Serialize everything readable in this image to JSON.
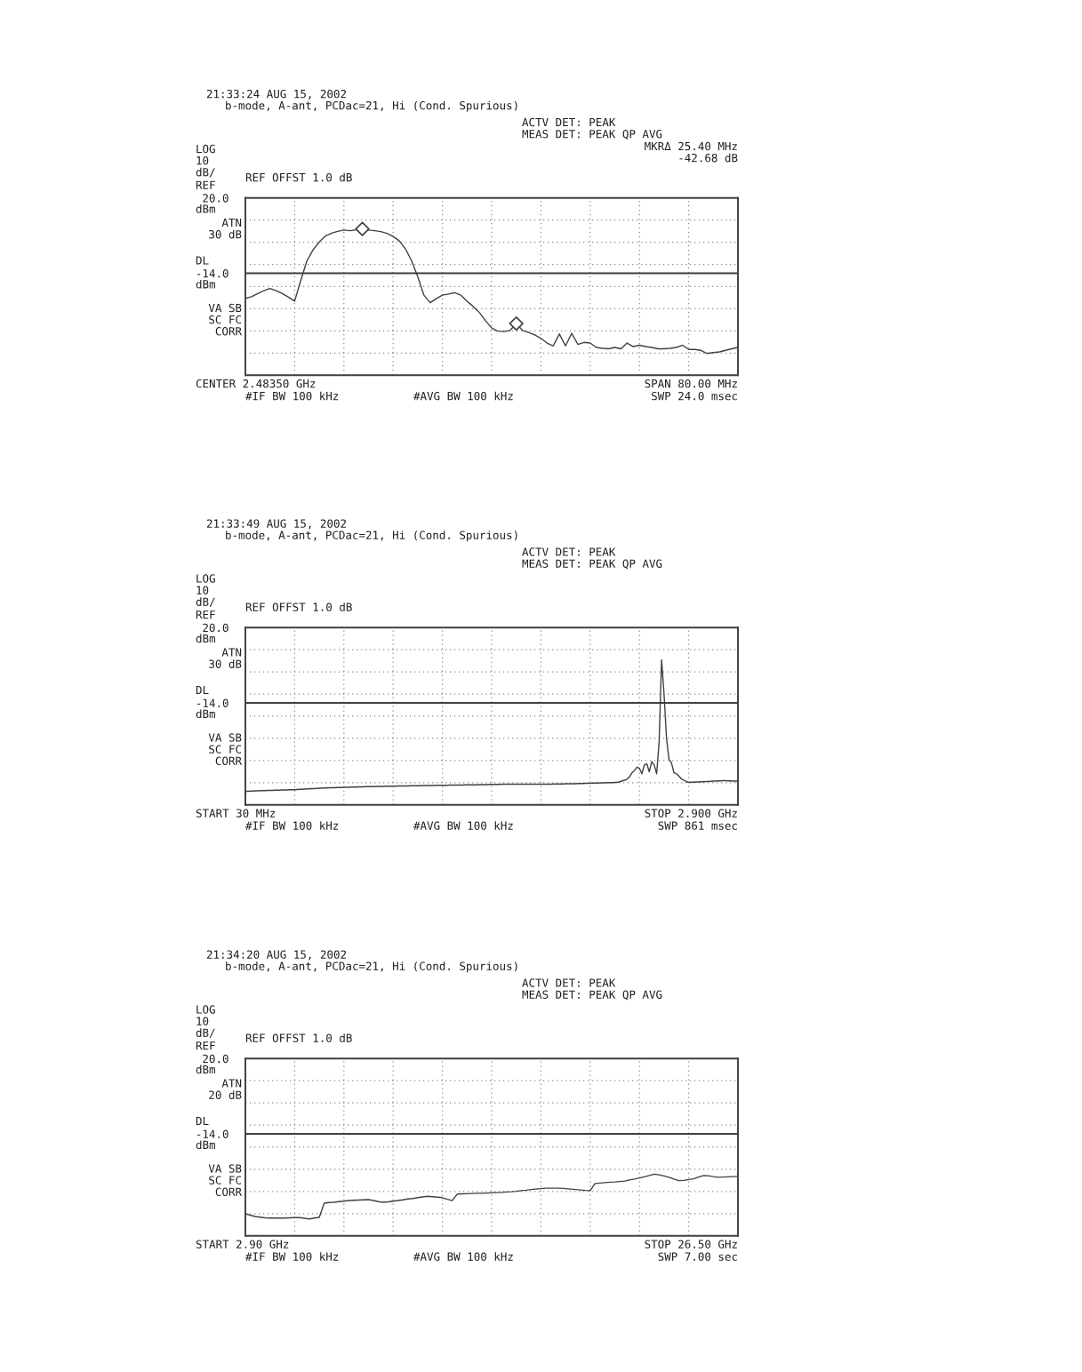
{
  "chart_data": [
    {
      "type": "line",
      "title": "21:33:24 AUG 15, 2002",
      "subtitle": "b-mode, A-ant, PCDac=21, Hi (Cond. Spurious)",
      "annotations": [
        "LOG\n10\ndB/",
        "ATN\n30 dB",
        "VA SB\nSC FC\nCORR",
        "REF OFFST 1.0 dB",
        "ACTV DET: PEAK\nMEAS DET: PEAK QP AVG",
        "#IF BW 100 kHz",
        "#AVG BW 100 kHz",
        "SWP 24.0 msec",
        "REF",
        "dBm",
        "DL",
        "dBm",
        "CENTER 2.48350 GHz",
        "SPAN 80.00 MHz",
        "MKRΔ 25.40 MHz\n-42.68 dB"
      ],
      "categories": [
        null,
        null,
        null,
        null,
        null,
        null,
        null,
        null,
        null,
        null,
        null,
        null,
        null,
        null,
        null,
        null,
        null,
        null,
        null,
        null,
        null,
        null,
        null,
        null,
        null,
        null,
        null,
        null,
        null,
        null,
        null,
        null,
        null,
        null,
        null,
        null,
        null,
        null,
        null,
        null,
        null,
        null,
        null,
        null,
        null,
        null,
        null,
        null,
        null,
        null,
        null,
        null,
        null,
        null,
        null,
        null,
        null,
        null,
        null,
        null,
        null,
        null,
        null,
        null,
        null,
        null,
        null,
        null,
        null,
        null,
        null,
        null,
        null,
        null,
        null,
        null,
        null,
        null,
        null,
        null,
        null
      ],
      "ylim": [
        -60,
        20
      ],
      "yticks": [
        {
          "value": -60,
          "label": null
        },
        {
          "value": -50,
          "label": null
        },
        {
          "value": -40,
          "label": null
        },
        {
          "value": -30,
          "label": null
        },
        {
          "value": -20,
          "label": null
        },
        {
          "value": -14,
          "label": "-14.0"
        },
        {
          "value": -10,
          "label": null
        },
        {
          "value": 0,
          "label": null
        },
        {
          "value": 10,
          "label": null
        },
        {
          "value": 20,
          "label": "20.0"
        }
      ],
      "grid": true,
      "tick_labels": "y",
      "ref_lines": [
        {
          "axis": "y",
          "value": -14.0,
          "color": "#404040"
        }
      ],
      "series": [
        {
          "color": "#404040",
          "values": [
            -25.3,
            -24.6,
            -23.2,
            -21.9,
            -20.9,
            -21.9,
            -23.2,
            -24.8,
            -26.6,
            -17.2,
            -8.4,
            -3.4,
            0.1,
            2.8,
            4.1,
            4.9,
            5.5,
            5.2,
            5.6,
            6.0,
            5.5,
            5.2,
            4.8,
            4.0,
            2.6,
            0.6,
            -3.0,
            -8.4,
            -15.6,
            -23.9,
            -27.3,
            -25.5,
            -23.9,
            -23.4,
            -22.8,
            -23.9,
            -26.6,
            -29.0,
            -31.7,
            -35.4,
            -38.7,
            -40.1,
            -40.3,
            -39.8,
            -36.7,
            -39.8,
            -40.7,
            -41.8,
            -43.4,
            -45.5,
            -46.8,
            -41.4,
            -46.8,
            -41.1,
            -46.1,
            -45.2,
            -45.5,
            -47.5,
            -47.9,
            -48.1,
            -47.5,
            -48.1,
            -45.5,
            -47.1,
            -46.5,
            -47.1,
            -47.5,
            -48.1,
            -48.1,
            -47.9,
            -47.5,
            -46.5,
            -48.4,
            -48.4,
            -48.8,
            -50.2,
            -49.8,
            -49.5,
            -48.8,
            -48.1,
            -47.5
          ]
        },
        {
          "type": "scatter",
          "marker": "diamond",
          "color": "#404040",
          "values": [
            null,
            null,
            null,
            null,
            null,
            null,
            null,
            null,
            null,
            null,
            null,
            null,
            null,
            null,
            null,
            null,
            null,
            null,
            null,
            6.0,
            null,
            null,
            null,
            null,
            null,
            null,
            null,
            null,
            null,
            null,
            null,
            null,
            null,
            null,
            null,
            null,
            null,
            null,
            null,
            null,
            null,
            null,
            null,
            null,
            -36.7,
            null,
            null,
            null,
            null,
            null,
            null,
            null,
            null,
            null,
            null,
            null,
            null,
            null,
            null,
            null,
            null,
            null,
            null,
            null,
            null,
            null,
            null,
            null,
            null,
            null,
            null,
            null,
            null,
            null,
            null,
            null,
            null,
            null,
            null,
            null,
            null
          ]
        }
      ]
    },
    {
      "type": "line",
      "title": "21:33:49 AUG 15, 2002",
      "subtitle": "b-mode, A-ant, PCDac=21, Hi (Cond. Spurious)",
      "annotations": [
        "LOG\n10\ndB/",
        "ATN\n30 dB",
        "VA SB\nSC FC\nCORR",
        "REF OFFST 1.0 dB",
        "ACTV DET: PEAK\nMEAS DET: PEAK QP AVG",
        "#IF BW 100 kHz",
        "#AVG BW 100 kHz",
        "SWP 861 msec",
        "REF",
        "dBm",
        "DL",
        "dBm",
        "START 30 MHz",
        "STOP 2.900 GHz"
      ],
      "categories": [
        null,
        null,
        null,
        null,
        null,
        null,
        null,
        null,
        null,
        null,
        null,
        null,
        null,
        null,
        null,
        null,
        null,
        null,
        null,
        null,
        null,
        null,
        null,
        null,
        null,
        null,
        null,
        null,
        null,
        null,
        null,
        null,
        null,
        null,
        null,
        null,
        null,
        null,
        null,
        null,
        null,
        null,
        null,
        null,
        null,
        null,
        null,
        null,
        null,
        null,
        null,
        null,
        null,
        null,
        null,
        null,
        null,
        null,
        null,
        null,
        null,
        null,
        null,
        null,
        null,
        null,
        null,
        null,
        null,
        null,
        null,
        null,
        null,
        null,
        null,
        null,
        null,
        null,
        null,
        null,
        null,
        null,
        null,
        null,
        null,
        null,
        null,
        null,
        null,
        null,
        null,
        null,
        null,
        null,
        null,
        null,
        null,
        null,
        null,
        null,
        null,
        null,
        null,
        null,
        null,
        null,
        null,
        null,
        null,
        null,
        null,
        null,
        null,
        null,
        null,
        null,
        null,
        null,
        null,
        null,
        null,
        null,
        null,
        null,
        null,
        null,
        null,
        null,
        null,
        null,
        null,
        null,
        null,
        null,
        null,
        null,
        null,
        null,
        null,
        null,
        null,
        null,
        null,
        null,
        null,
        null,
        null,
        null,
        null,
        null,
        null,
        null,
        null,
        null,
        null,
        null,
        null,
        null,
        null,
        null,
        null,
        null,
        null,
        null,
        null,
        null,
        null,
        null,
        null,
        null,
        null,
        null,
        null,
        null,
        null,
        null,
        null,
        null,
        null,
        null,
        null,
        null,
        null,
        null,
        null,
        null,
        null,
        null,
        null,
        null,
        null,
        null,
        null,
        null,
        null,
        null,
        null,
        null,
        null,
        null,
        null
      ],
      "ylim": [
        -60,
        20
      ],
      "yticks": [
        {
          "value": -60,
          "label": null
        },
        {
          "value": -50,
          "label": null
        },
        {
          "value": -40,
          "label": null
        },
        {
          "value": -30,
          "label": null
        },
        {
          "value": -20,
          "label": null
        },
        {
          "value": -14,
          "label": "-14.0"
        },
        {
          "value": -10,
          "label": null
        },
        {
          "value": 0,
          "label": null
        },
        {
          "value": 10,
          "label": null
        },
        {
          "value": 20,
          "label": "20.0"
        }
      ],
      "grid": true,
      "tick_labels": "y",
      "ref_lines": [
        {
          "axis": "y",
          "value": -14.0,
          "color": "#404040"
        }
      ],
      "series": [
        {
          "color": "#404040",
          "values": [
            -53.9,
            -53.9,
            -53.8,
            -53.8,
            -53.7,
            -53.7,
            -53.6,
            -53.6,
            -53.6,
            -53.5,
            -53.5,
            -53.5,
            -53.4,
            -53.4,
            -53.4,
            -53.3,
            -53.3,
            -53.3,
            -53.2,
            -53.2,
            -53.2,
            -53.1,
            -53.0,
            -53.0,
            -52.9,
            -52.8,
            -52.8,
            -52.7,
            -52.7,
            -52.6,
            -52.5,
            -52.5,
            -52.4,
            -52.4,
            -52.3,
            -52.3,
            -52.3,
            -52.2,
            -52.2,
            -52.2,
            -52.1,
            -52.1,
            -52.1,
            -52.0,
            -52.0,
            -52.0,
            -51.9,
            -51.9,
            -51.9,
            -51.8,
            -51.8,
            -51.8,
            -51.8,
            -51.7,
            -51.7,
            -51.7,
            -51.7,
            -51.6,
            -51.6,
            -51.6,
            -51.6,
            -51.6,
            -51.5,
            -51.5,
            -51.5,
            -51.5,
            -51.5,
            -51.4,
            -51.4,
            -51.4,
            -51.4,
            -51.4,
            -51.3,
            -51.3,
            -51.3,
            -51.3,
            -51.3,
            -51.2,
            -51.2,
            -51.2,
            -51.2,
            -51.2,
            -51.2,
            -51.1,
            -51.1,
            -51.1,
            -51.1,
            -51.1,
            -51.1,
            -51.0,
            -51.0,
            -51.0,
            -51.0,
            -51.0,
            -51.0,
            -50.9,
            -50.9,
            -50.9,
            -50.9,
            -50.8,
            -50.8,
            -50.8,
            -50.8,
            -50.8,
            -50.7,
            -50.7,
            -50.7,
            -50.7,
            -50.7,
            -50.7,
            -50.7,
            -50.7,
            -50.7,
            -50.7,
            -50.7,
            -50.7,
            -50.7,
            -50.7,
            -50.7,
            -50.7,
            -50.7,
            -50.7,
            -50.7,
            -50.7,
            -50.7,
            -50.6,
            -50.6,
            -50.6,
            -50.6,
            -50.6,
            -50.5,
            -50.5,
            -50.5,
            -50.5,
            -50.5,
            -50.4,
            -50.4,
            -50.4,
            -50.3,
            -50.3,
            -50.3,
            -50.2,
            -50.2,
            -50.2,
            -50.1,
            -50.1,
            -50.1,
            -50.0,
            -50.0,
            -50.0,
            -49.9,
            -49.9,
            -49.6,
            -49.2,
            -48.9,
            -48.4,
            -47.3,
            -45.5,
            -44.5,
            -43.0,
            -43.5,
            -46.0,
            -42.0,
            -41.5,
            -45.1,
            -40.5,
            -42.0,
            -46.0,
            -31.5,
            5.4,
            -10.0,
            -30.0,
            -39.5,
            -41.0,
            -45.5,
            -46.0,
            -47.0,
            -48.3,
            -48.8,
            -49.5,
            -49.9,
            -49.8,
            -49.8,
            -49.7,
            -49.7,
            -49.6,
            -49.6,
            -49.5,
            -49.5,
            -49.4,
            -49.3,
            -49.3,
            -49.2,
            -49.2,
            -49.1,
            -49.1,
            -49.2,
            -49.2,
            -49.3,
            -49.3,
            -49.4
          ]
        }
      ]
    },
    {
      "type": "line",
      "title": "21:34:20 AUG 15, 2002",
      "subtitle": "b-mode, A-ant, PCDac=21, Hi (Cond. Spurious)",
      "annotations": [
        "LOG\n10\ndB/",
        "ATN\n20 dB",
        "VA SB\nSC FC\nCORR",
        "REF OFFST 1.0 dB",
        "ACTV DET: PEAK\nMEAS DET: PEAK QP AVG",
        "#IF BW 100 kHz",
        "#AVG BW 100 kHz",
        "SWP 7.00 sec",
        "REF",
        "dBm",
        "DL",
        "dBm",
        "START 2.90 GHz",
        "STOP 26.50 GHz"
      ],
      "categories": [
        null,
        null,
        null,
        null,
        null,
        null,
        null,
        null,
        null,
        null,
        null,
        null,
        null,
        null,
        null,
        null,
        null,
        null,
        null,
        null,
        null,
        null,
        null,
        null,
        null,
        null,
        null,
        null,
        null,
        null,
        null,
        null,
        null,
        null,
        null,
        null,
        null,
        null,
        null,
        null,
        null,
        null,
        null,
        null,
        null,
        null,
        null,
        null,
        null,
        null,
        null,
        null,
        null,
        null,
        null,
        null,
        null,
        null,
        null,
        null,
        null,
        null,
        null,
        null,
        null,
        null,
        null,
        null,
        null,
        null,
        null,
        null,
        null,
        null,
        null,
        null,
        null,
        null,
        null,
        null,
        null,
        null,
        null,
        null,
        null,
        null,
        null,
        null,
        null,
        null,
        null,
        null,
        null,
        null,
        null,
        null,
        null,
        null,
        null,
        null,
        null
      ],
      "ylim": [
        -60,
        20
      ],
      "yticks": [
        {
          "value": -60,
          "label": null
        },
        {
          "value": -50,
          "label": null
        },
        {
          "value": -40,
          "label": null
        },
        {
          "value": -30,
          "label": null
        },
        {
          "value": -20,
          "label": null
        },
        {
          "value": -14,
          "label": "-14.0"
        },
        {
          "value": -10,
          "label": null
        },
        {
          "value": 0,
          "label": null
        },
        {
          "value": 10,
          "label": null
        },
        {
          "value": 20,
          "label": "20.0"
        }
      ],
      "grid": true,
      "tick_labels": "y",
      "ref_lines": [
        {
          "axis": "y",
          "value": -14.0,
          "color": "#404040"
        }
      ],
      "series": [
        {
          "color": "#404040",
          "values": [
            -50.1,
            -50.7,
            -51.3,
            -51.6,
            -51.9,
            -52.0,
            -52.0,
            -52.0,
            -52.0,
            -51.9,
            -51.8,
            -51.8,
            -52.1,
            -52.4,
            -52.0,
            -51.7,
            -45.3,
            -45.0,
            -44.9,
            -44.6,
            -44.4,
            -44.1,
            -44.0,
            -43.9,
            -43.8,
            -43.7,
            -44.1,
            -44.6,
            -44.9,
            -44.7,
            -44.4,
            -44.1,
            -43.8,
            -43.4,
            -43.2,
            -42.8,
            -42.5,
            -42.2,
            -42.4,
            -42.6,
            -42.8,
            -43.5,
            -44.1,
            -41.2,
            -41.1,
            -41.0,
            -40.9,
            -40.8,
            -40.8,
            -40.7,
            -40.6,
            -40.5,
            -40.4,
            -40.2,
            -40.1,
            -39.9,
            -39.6,
            -39.4,
            -39.1,
            -38.9,
            -38.7,
            -38.5,
            -38.5,
            -38.5,
            -38.5,
            -38.7,
            -38.9,
            -39.1,
            -39.3,
            -39.5,
            -39.6,
            -36.4,
            -36.2,
            -36.0,
            -35.8,
            -35.7,
            -35.5,
            -35.3,
            -34.8,
            -34.4,
            -33.9,
            -33.4,
            -32.8,
            -32.2,
            -32.5,
            -33.0,
            -33.6,
            -34.4,
            -35.1,
            -35.0,
            -34.6,
            -34.3,
            -33.5,
            -32.8,
            -32.9,
            -33.3,
            -33.6,
            -33.5,
            -33.4,
            -33.3,
            -33.2
          ]
        }
      ]
    }
  ]
}
